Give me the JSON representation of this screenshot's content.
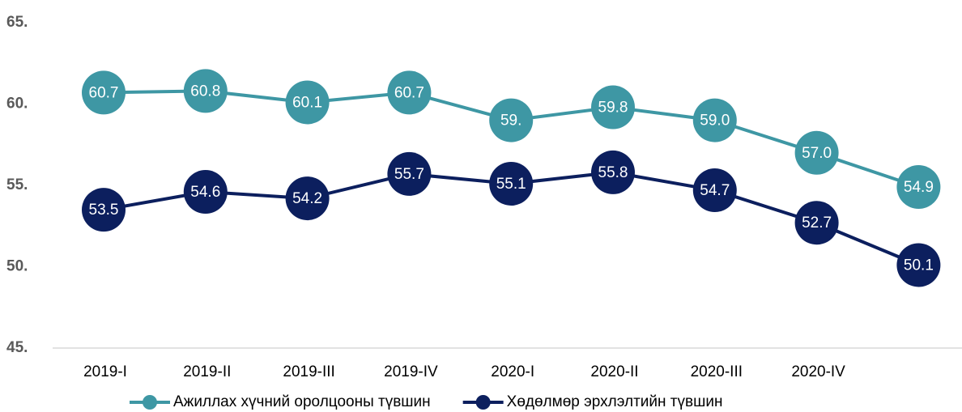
{
  "chart_data": {
    "type": "line",
    "categories": [
      "2019-I",
      "2019-II",
      "2019-III",
      "2019-IV",
      "2020-I",
      "2020-II",
      "2020-III",
      "2020-IV",
      null
    ],
    "series": [
      {
        "name": "Ажиллах хүчний оролцооны түвшин",
        "color": "#3e97a4",
        "values": [
          60.7,
          60.8,
          60.1,
          60.7,
          59.0,
          59.8,
          59.0,
          57.0,
          54.9
        ],
        "value_labels": [
          "60.7",
          "60.8",
          "60.1",
          "60.7",
          "59.",
          "59.8",
          "59.0",
          "57.0",
          "54.9"
        ]
      },
      {
        "name": "Хөдөлмөр эрхлэлтийн түвшин",
        "color": "#0c1f5e",
        "values": [
          53.5,
          54.6,
          54.2,
          55.7,
          55.1,
          55.8,
          54.7,
          52.7,
          50.1
        ]
      }
    ],
    "ylim": [
      45,
      65
    ],
    "yticks": [
      {
        "value": 45,
        "label": "45."
      },
      {
        "value": 50,
        "label": "50."
      },
      {
        "value": 55,
        "label": "55."
      },
      {
        "value": 60,
        "label": "60."
      },
      {
        "value": 65,
        "label": "65."
      }
    ],
    "legend": "bottom"
  }
}
